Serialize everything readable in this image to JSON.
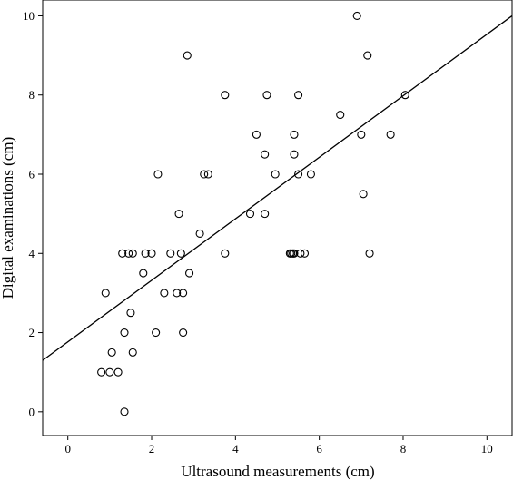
{
  "chart_data": {
    "type": "scatter",
    "xlabel": "Ultrasound measurements (cm)",
    "ylabel": "Digital examinations (cm)",
    "xlim": [
      -0.6,
      10.6
    ],
    "ylim": [
      -0.6,
      10.4
    ],
    "xticks": [
      0,
      2,
      4,
      6,
      8,
      10
    ],
    "yticks": [
      0,
      2,
      4,
      6,
      8,
      10
    ],
    "grid": false,
    "series": [
      {
        "marker": "open-circle",
        "points": [
          [
            0.8,
            1
          ],
          [
            1.0,
            1
          ],
          [
            1.2,
            1
          ],
          [
            1.35,
            0
          ],
          [
            1.05,
            1.5
          ],
          [
            1.55,
            1.5
          ],
          [
            0.9,
            3
          ],
          [
            1.35,
            2
          ],
          [
            1.5,
            2.5
          ],
          [
            2.1,
            2
          ],
          [
            2.75,
            2
          ],
          [
            2.3,
            3
          ],
          [
            2.6,
            3
          ],
          [
            2.75,
            3
          ],
          [
            1.3,
            4
          ],
          [
            1.45,
            4
          ],
          [
            1.55,
            4
          ],
          [
            1.8,
            3.5
          ],
          [
            1.85,
            4
          ],
          [
            2.0,
            4
          ],
          [
            2.45,
            4
          ],
          [
            2.7,
            4
          ],
          [
            2.9,
            3.5
          ],
          [
            3.15,
            4.5
          ],
          [
            3.75,
            4
          ],
          [
            2.65,
            5
          ],
          [
            2.15,
            6
          ],
          [
            3.25,
            6
          ],
          [
            3.35,
            6
          ],
          [
            2.85,
            9
          ],
          [
            3.75,
            8
          ],
          [
            4.75,
            8
          ],
          [
            4.35,
            5
          ],
          [
            4.7,
            5
          ],
          [
            4.5,
            7
          ],
          [
            4.7,
            6.5
          ],
          [
            4.95,
            6
          ],
          [
            5.3,
            4
          ],
          [
            5.33,
            4
          ],
          [
            5.37,
            4
          ],
          [
            5.4,
            4
          ],
          [
            5.55,
            4
          ],
          [
            5.65,
            4
          ],
          [
            5.4,
            6.5
          ],
          [
            5.4,
            7
          ],
          [
            5.5,
            6
          ],
          [
            5.5,
            8
          ],
          [
            5.8,
            6
          ],
          [
            6.5,
            7.5
          ],
          [
            6.9,
            10
          ],
          [
            7.0,
            7
          ],
          [
            7.05,
            5.5
          ],
          [
            7.15,
            9
          ],
          [
            7.2,
            4
          ],
          [
            7.7,
            7
          ],
          [
            8.05,
            8
          ]
        ]
      }
    ],
    "fit_line": {
      "x": [
        -0.6,
        10.6
      ],
      "y": [
        1.3,
        10.0
      ]
    }
  }
}
